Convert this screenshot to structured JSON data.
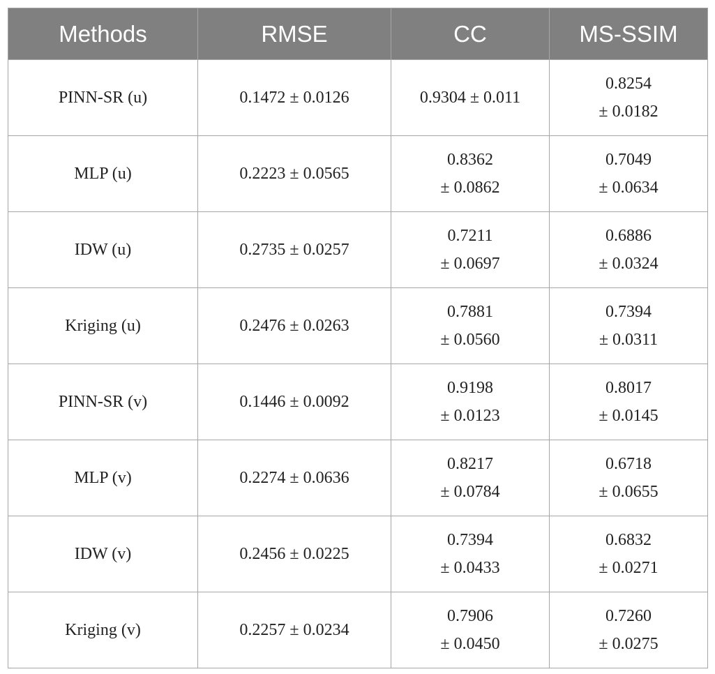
{
  "table": {
    "columns": [
      "Methods",
      "RMSE",
      "CC",
      "MS-SSIM"
    ],
    "rows": [
      [
        "PINN-SR (u)",
        "0.1472 ± 0.0126",
        "0.9304 ± 0.011",
        [
          "0.8254",
          "± 0.0182"
        ]
      ],
      [
        "MLP (u)",
        "0.2223 ± 0.0565",
        [
          "0.8362",
          "± 0.0862"
        ],
        [
          "0.7049",
          "± 0.0634"
        ]
      ],
      [
        "IDW (u)",
        "0.2735 ± 0.0257",
        [
          "0.7211",
          "± 0.0697"
        ],
        [
          "0.6886",
          "± 0.0324"
        ]
      ],
      [
        "Kriging (u)",
        "0.2476 ± 0.0263",
        [
          "0.7881",
          "± 0.0560"
        ],
        [
          "0.7394",
          "± 0.0311"
        ]
      ],
      [
        "PINN-SR (v)",
        "0.1446 ± 0.0092",
        [
          "0.9198",
          "± 0.0123"
        ],
        [
          "0.8017",
          "± 0.0145"
        ]
      ],
      [
        "MLP (v)",
        "0.2274 ± 0.0636",
        [
          "0.8217",
          "± 0.0784"
        ],
        [
          "0.6718",
          "± 0.0655"
        ]
      ],
      [
        "IDW (v)",
        "0.2456 ± 0.0225",
        [
          "0.7394",
          "± 0.0433"
        ],
        [
          "0.6832",
          "± 0.0271"
        ]
      ],
      [
        "Kriging (v)",
        "0.2257 ± 0.0234",
        [
          "0.7906",
          "± 0.0450"
        ],
        [
          "0.7260",
          "± 0.0275"
        ]
      ]
    ]
  }
}
